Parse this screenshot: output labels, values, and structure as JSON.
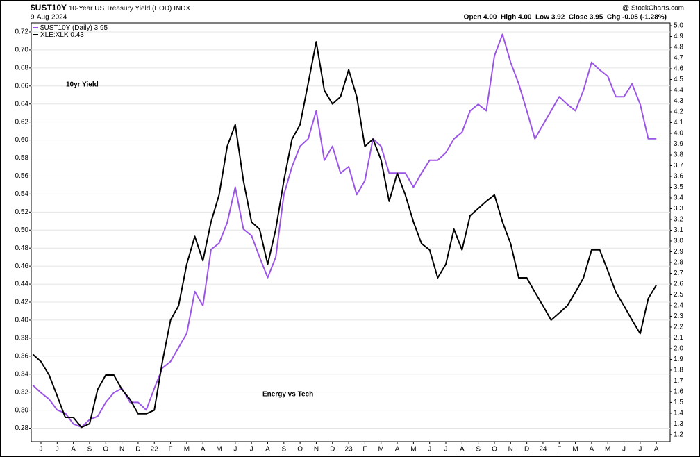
{
  "chart_data": {
    "type": "line",
    "symbol": "$UST10Y",
    "description": "10-Year US Treasury Yield (EOD)",
    "exchange": "INDX",
    "date": "9-Aug-2024",
    "source": "@ StockCharts.com",
    "quote": "Open 4.00  High 4.00  Low 3.92  Close 3.95  Chg -0.05 (-1.28%)",
    "annotations": [
      {
        "text": "10yr Yield",
        "color": "#a34ff0"
      },
      {
        "text": "Energy vs Tech",
        "color": "#000000"
      }
    ],
    "grid": true,
    "xlim": [
      -0.1,
      39.35
    ],
    "xticks": [
      {
        "value": 0.5,
        "label": "J"
      },
      {
        "value": 1.5,
        "label": "J"
      },
      {
        "value": 2.5,
        "label": "A"
      },
      {
        "value": 3.5,
        "label": "S"
      },
      {
        "value": 4.5,
        "label": "O"
      },
      {
        "value": 5.5,
        "label": "N"
      },
      {
        "value": 6.5,
        "label": "D"
      },
      {
        "value": 7.5,
        "label": "22"
      },
      {
        "value": 8.5,
        "label": "F"
      },
      {
        "value": 9.5,
        "label": "M"
      },
      {
        "value": 10.5,
        "label": "A"
      },
      {
        "value": 11.5,
        "label": "M"
      },
      {
        "value": 12.5,
        "label": "J"
      },
      {
        "value": 13.5,
        "label": "J"
      },
      {
        "value": 14.5,
        "label": "A"
      },
      {
        "value": 15.5,
        "label": "S"
      },
      {
        "value": 16.5,
        "label": "O"
      },
      {
        "value": 17.5,
        "label": "N"
      },
      {
        "value": 18.5,
        "label": "D"
      },
      {
        "value": 19.5,
        "label": "23"
      },
      {
        "value": 20.5,
        "label": "F"
      },
      {
        "value": 21.5,
        "label": "M"
      },
      {
        "value": 22.5,
        "label": "A"
      },
      {
        "value": 23.5,
        "label": "M"
      },
      {
        "value": 24.5,
        "label": "J"
      },
      {
        "value": 25.5,
        "label": "J"
      },
      {
        "value": 26.5,
        "label": "A"
      },
      {
        "value": 27.5,
        "label": "S"
      },
      {
        "value": 28.5,
        "label": "O"
      },
      {
        "value": 29.5,
        "label": "N"
      },
      {
        "value": 30.5,
        "label": "D"
      },
      {
        "value": 31.5,
        "label": "24"
      },
      {
        "value": 32.5,
        "label": "F"
      },
      {
        "value": 33.5,
        "label": "M"
      },
      {
        "value": 34.5,
        "label": "A"
      },
      {
        "value": 35.5,
        "label": "M"
      },
      {
        "value": 36.5,
        "label": "J"
      },
      {
        "value": 37.5,
        "label": "J"
      },
      {
        "value": 38.5,
        "label": "A"
      }
    ],
    "ylim": [
      0.265,
      0.73
    ],
    "yticks": [
      0.28,
      {
        "value": 0.3,
        "label": "0.30"
      },
      0.32,
      0.34,
      0.36,
      0.38,
      {
        "value": 0.4,
        "label": "0.40"
      },
      0.42,
      0.44,
      0.46,
      0.48,
      {
        "value": 0.5,
        "label": "0.50"
      },
      0.52,
      0.54,
      0.56,
      0.58,
      {
        "value": 0.6,
        "label": "0.60"
      },
      0.62,
      0.64,
      0.66,
      0.68,
      {
        "value": 0.7,
        "label": "0.70"
      },
      0.72
    ],
    "y2lim": [
      1.135,
      5.026
    ],
    "y2ticks": [
      1.2,
      1.3,
      1.4,
      1.5,
      1.6,
      1.7,
      1.8,
      1.9,
      {
        "value": 2,
        "label": "2.0"
      },
      2.1,
      2.2,
      2.3,
      2.4,
      2.5,
      2.6,
      2.7,
      2.8,
      2.9,
      {
        "value": 3,
        "label": "3.0"
      },
      3.1,
      3.2,
      3.3,
      3.4,
      3.5,
      3.6,
      3.7,
      3.8,
      3.9,
      {
        "value": 4,
        "label": "4.0"
      },
      4.1,
      4.2,
      4.3,
      4.4,
      4.5,
      4.6,
      4.7,
      4.8,
      4.9,
      {
        "value": 5,
        "label": "5.0"
      }
    ],
    "x": [
      0,
      0.5,
      1,
      1.5,
      2,
      2.5,
      3,
      3.5,
      4,
      4.5,
      5,
      5.5,
      6,
      6.5,
      7,
      7.5,
      8,
      8.5,
      9,
      9.5,
      10,
      10.5,
      11,
      11.5,
      12,
      12.5,
      13,
      13.5,
      14,
      14.5,
      15,
      15.5,
      16,
      16.5,
      17,
      17.5,
      18,
      18.5,
      19,
      19.5,
      20,
      20.5,
      21,
      21.5,
      22,
      22.5,
      23,
      23.5,
      24,
      24.5,
      25,
      25.5,
      26,
      26.5,
      27,
      27.5,
      28,
      28.5,
      29,
      29.5,
      30,
      30.5,
      31,
      31.5,
      32,
      32.5,
      33,
      33.5,
      34,
      34.5,
      35,
      35.5,
      36,
      36.5,
      37,
      37.5,
      38,
      38.5
    ],
    "series": [
      {
        "name": "$UST10Y (Daily)",
        "last": 3.95,
        "color": "#9b55e6",
        "axis": "y2",
        "values": [
          1.66,
          1.59,
          1.53,
          1.43,
          1.4,
          1.3,
          1.27,
          1.34,
          1.37,
          1.5,
          1.59,
          1.63,
          1.5,
          1.5,
          1.43,
          1.63,
          1.82,
          1.88,
          2.01,
          2.14,
          2.53,
          2.4,
          2.92,
          2.98,
          3.17,
          3.5,
          3.11,
          3.05,
          2.85,
          2.66,
          2.85,
          3.43,
          3.69,
          3.88,
          3.95,
          4.21,
          3.75,
          3.88,
          3.63,
          3.69,
          3.43,
          3.56,
          3.95,
          3.88,
          3.63,
          3.63,
          3.63,
          3.5,
          3.63,
          3.75,
          3.75,
          3.82,
          3.95,
          4.01,
          4.21,
          4.27,
          4.21,
          4.72,
          4.92,
          4.66,
          4.46,
          4.21,
          3.95,
          4.08,
          4.21,
          4.34,
          4.27,
          4.21,
          4.4,
          4.66,
          4.59,
          4.53,
          4.34,
          4.34,
          4.46,
          4.27,
          3.95,
          3.95
        ]
      },
      {
        "name": "XLE:XLK",
        "last": 0.43,
        "color": "#000000",
        "values": [
          0.362,
          0.354,
          0.339,
          0.316,
          0.292,
          0.292,
          0.281,
          0.285,
          0.323,
          0.339,
          0.339,
          0.323,
          0.312,
          0.296,
          0.296,
          0.3,
          0.354,
          0.4,
          0.416,
          0.462,
          0.493,
          0.466,
          0.509,
          0.539,
          0.593,
          0.617,
          0.555,
          0.509,
          0.501,
          0.462,
          0.501,
          0.555,
          0.601,
          0.617,
          0.663,
          0.709,
          0.655,
          0.64,
          0.648,
          0.678,
          0.648,
          0.593,
          0.601,
          0.578,
          0.532,
          0.563,
          0.539,
          0.509,
          0.485,
          0.478,
          0.447,
          0.462,
          0.501,
          0.478,
          0.516,
          0.524,
          0.532,
          0.539,
          0.509,
          0.485,
          0.447,
          0.447,
          0.431,
          0.416,
          0.4,
          0.408,
          0.416,
          0.431,
          0.447,
          0.478,
          0.478,
          0.455,
          0.431,
          0.416,
          0.4,
          0.385,
          0.424,
          0.439
        ]
      }
    ]
  }
}
